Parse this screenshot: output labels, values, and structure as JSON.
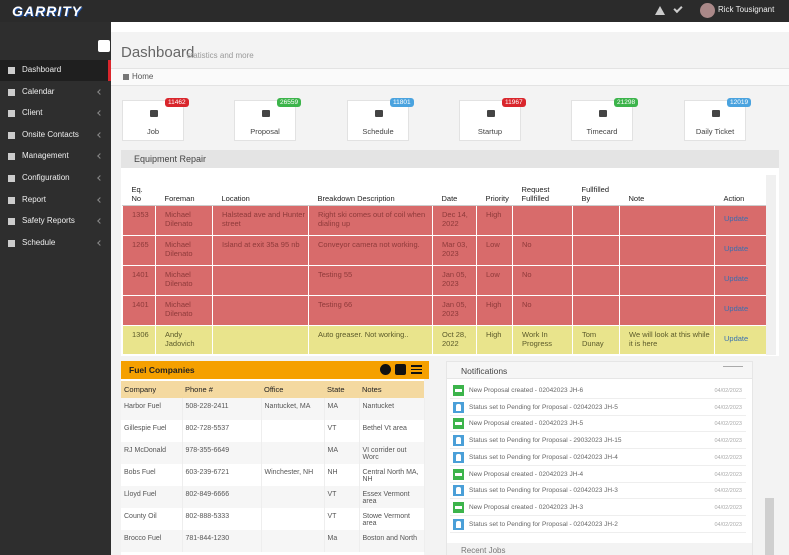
{
  "topbar": {
    "logo": "GARRITY",
    "user": "Rick Tousignant"
  },
  "sidebar": {
    "items": [
      "Dashboard",
      "Calendar",
      "Client",
      "Onsite Contacts",
      "Management",
      "Configuration",
      "Report",
      "Safety Reports",
      "Schedule"
    ],
    "active": 0
  },
  "page": {
    "title": "Dashboard",
    "subtitle": "statistics and more",
    "breadcrumb": "Home"
  },
  "tiles": [
    {
      "label": "Job",
      "count": 11462,
      "color": "#d9262c"
    },
    {
      "label": "Proposal",
      "count": 26559,
      "color": "#3cb44b"
    },
    {
      "label": "Schedule",
      "count": 11801,
      "color": "#4aa3df"
    },
    {
      "label": "Startup",
      "count": 11967,
      "color": "#d9262c"
    },
    {
      "label": "Timecard",
      "count": 21298,
      "color": "#3cb44b"
    },
    {
      "label": "Daily Ticket",
      "count": 12019,
      "color": "#4aa3df"
    }
  ],
  "equipment_repair": {
    "title": "Equipment Repair",
    "columns": [
      "Eq. No",
      "Foreman",
      "Location",
      "Breakdown Description",
      "Date",
      "Priority",
      "Request Fullfilled",
      "Fullfilled By",
      "Note",
      "Action"
    ],
    "rows": [
      {
        "color": "#d86b6b",
        "cells": [
          "1353",
          "Michael Dilenato",
          "Halstead ave and Hunter street",
          "Right ski comes out of coil when dialing up",
          "Dec 14, 2022",
          "High",
          null,
          null,
          null,
          "Update"
        ]
      },
      {
        "color": "#d86b6b",
        "cells": [
          "1265",
          "Michael Dilenato",
          "Island at exit 35a 95 nb",
          "Conveyor camera not working.",
          "Mar 03, 2023",
          "Low",
          "No",
          null,
          null,
          "Update"
        ]
      },
      {
        "color": "#d86b6b",
        "cells": [
          "1401",
          "Michael Dilenato",
          null,
          "Testing 55",
          "Jan 05, 2023",
          "Low",
          "No",
          null,
          null,
          "Update"
        ]
      },
      {
        "color": "#d86b6b",
        "cells": [
          "1401",
          "Michael Dilenato",
          null,
          "Testing 66",
          "Jan 05, 2023",
          "High",
          "No",
          null,
          null,
          "Update"
        ]
      },
      {
        "color": "#e9e48c",
        "cells": [
          "1306",
          "Andy Jadovich",
          null,
          "Auto greaser. Not working..",
          "Oct 28, 2022",
          "High",
          "Work In Progress",
          "Tom Dunay",
          "We will look at this while it is here",
          "Update"
        ]
      }
    ]
  },
  "fuel_companies": {
    "title": "Fuel Companies",
    "columns": [
      "Company",
      "Phone #",
      "Office",
      "State",
      "Notes"
    ],
    "rows": [
      [
        "Harbor Fuel",
        "508-228-2411",
        "Nantucket, MA",
        "MA",
        "Nantucket"
      ],
      [
        "Gillespie Fuel",
        "802-728-5537",
        null,
        "VT",
        "Bethel Vt area"
      ],
      [
        "RJ McDonald",
        "978-355-6649",
        null,
        "MA",
        "VI corrider out Worc"
      ],
      [
        "Bobs Fuel",
        "603-239-6721",
        "Winchester, NH",
        "NH",
        "Central North MA, NH"
      ],
      [
        "Lloyd Fuel",
        "802-849-6666",
        null,
        "VT",
        "Essex Vermont area"
      ],
      [
        "County Oil",
        "802-888-5333",
        null,
        "VT",
        "Stowe Vermont area"
      ],
      [
        "Brocco Fuel",
        "781-844-1230",
        null,
        "Ma",
        "Boston and North"
      ]
    ]
  },
  "notifications": {
    "title": "Notifications",
    "items": [
      {
        "kind": "new",
        "text": "New Proposal created - 02042023 JH-6",
        "date": "04/02/2023"
      },
      {
        "kind": "status",
        "text": "Status set to Pending for Proposal - 02042023 JH-5",
        "date": "04/02/2023"
      },
      {
        "kind": "new",
        "text": "New Proposal created - 02042023 JH-5",
        "date": "04/02/2023"
      },
      {
        "kind": "status",
        "text": "Status set to Pending for Proposal - 29032023 JH-15",
        "date": "04/02/2023"
      },
      {
        "kind": "status",
        "text": "Status set to Pending for Proposal - 02042023 JH-4",
        "date": "04/02/2023"
      },
      {
        "kind": "new",
        "text": "New Proposal created - 02042023 JH-4",
        "date": "04/02/2023"
      },
      {
        "kind": "status",
        "text": "Status set to Pending for Proposal - 02042023 JH-3",
        "date": "04/02/2023"
      },
      {
        "kind": "new",
        "text": "New Proposal created - 02042023 JH-3",
        "date": "04/02/2023"
      },
      {
        "kind": "status",
        "text": "Status set to Pending for Proposal - 02042023 JH-2",
        "date": "04/02/2023"
      }
    ]
  },
  "recent_jobs": {
    "title": "Recent Jobs"
  }
}
